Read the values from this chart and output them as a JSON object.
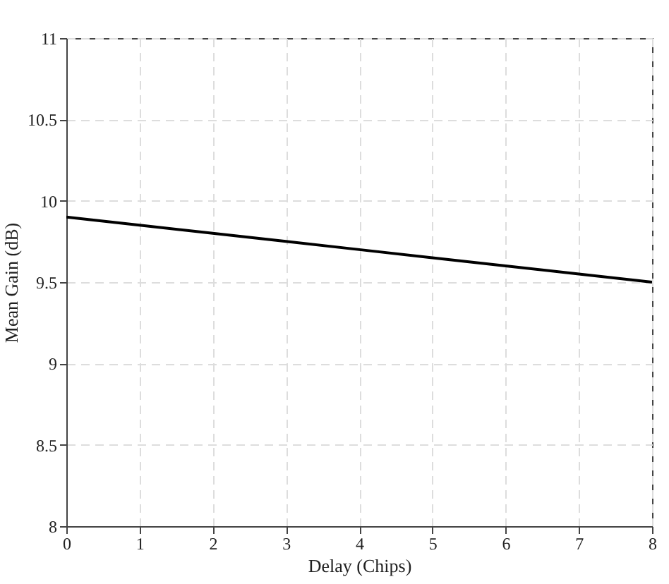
{
  "chart_data": {
    "type": "line",
    "xlabel": "Delay (Chips)",
    "ylabel": "Mean Gain (dB)",
    "x": [
      0,
      1,
      2,
      3,
      4,
      5,
      6,
      7,
      8
    ],
    "series": [
      {
        "color": "#000000",
        "values": [
          9.9,
          9.85,
          9.8,
          9.75,
          9.7,
          9.65,
          9.6,
          9.55,
          9.5
        ]
      }
    ],
    "xlim": [
      0,
      8
    ],
    "xticks": [
      0,
      1,
      2,
      3,
      4,
      5,
      6,
      7,
      8
    ],
    "ylim": [
      8,
      11
    ],
    "yticks": [
      8,
      8.5,
      9,
      9.5,
      10,
      10.5,
      11
    ],
    "grid": true,
    "marker": "none",
    "line_style": "solid"
  }
}
